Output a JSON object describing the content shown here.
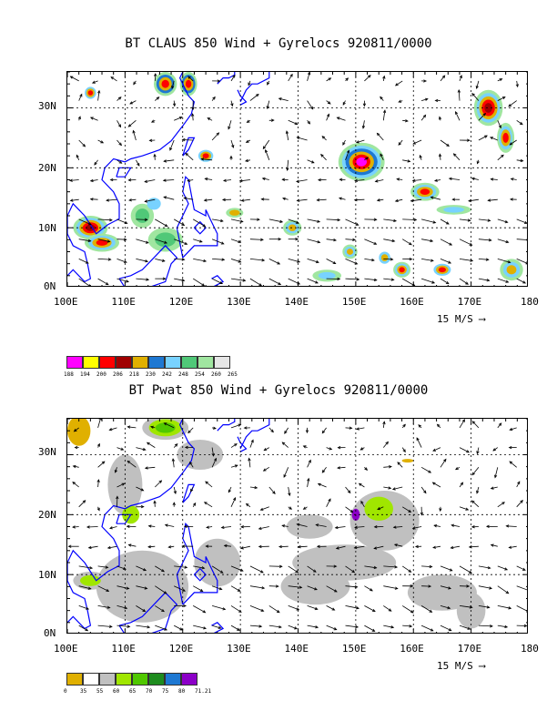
{
  "panels": [
    {
      "title": "BT CLAUS 850 Wind + Gyrelocs 920811/0000",
      "lat_labels": [
        "30N",
        "20N",
        "10N",
        "0N"
      ],
      "lon_labels": [
        "100E",
        "110E",
        "120E",
        "130E",
        "140E",
        "150E",
        "160E",
        "170E",
        "180"
      ],
      "vector_ref": "15 M/S",
      "colorbar_labels": [
        "188",
        "194",
        "200",
        "206",
        "218",
        "230",
        "242",
        "248",
        "254",
        "260",
        "265"
      ],
      "colorbar_colors": [
        "#ff00ff",
        "#ffff00",
        "#ff0000",
        "#a00000",
        "#e0b000",
        "#1e78d2",
        "#78d2ff",
        "#50c878",
        "#a0e6a0",
        "#e6e6e6"
      ]
    },
    {
      "title": "BT Pwat 850 Wind + Gyrelocs 920811/0000",
      "lat_labels": [
        "30N",
        "20N",
        "10N",
        "0N"
      ],
      "lon_labels": [
        "100E",
        "110E",
        "120E",
        "130E",
        "140E",
        "150E",
        "160E",
        "170E",
        "180"
      ],
      "vector_ref": "15 M/S",
      "colorbar_labels": [
        "0",
        "35",
        "55",
        "60",
        "65",
        "70",
        "75",
        "80",
        "71.21"
      ],
      "colorbar_colors": [
        "#e0b000",
        "#ffffff",
        "#c0c0c0",
        "#a0e600",
        "#50c800",
        "#1e8c1e",
        "#1e78d2",
        "#8c00c8"
      ]
    }
  ],
  "map": {
    "lon_range": [
      100,
      180
    ],
    "lat_range": [
      0,
      36
    ],
    "grid_lon": [
      110,
      120,
      130,
      140,
      150,
      160,
      170
    ],
    "grid_lat": [
      10,
      20,
      30
    ],
    "coast_color": "#0000ff"
  }
}
